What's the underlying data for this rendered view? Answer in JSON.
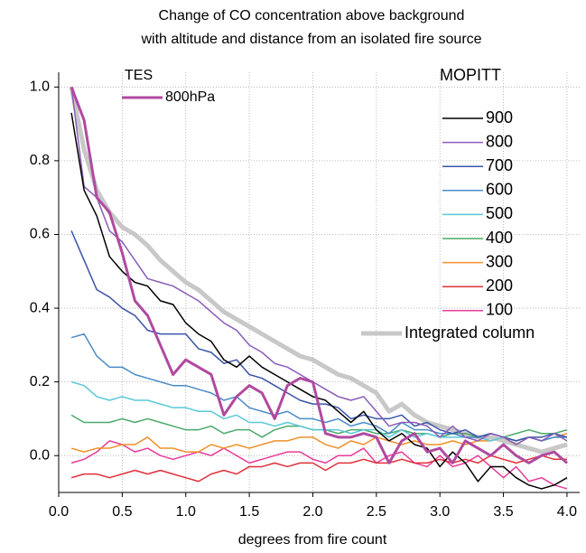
{
  "chart_data": {
    "type": "line",
    "title": [
      "Change of CO concentration above background",
      "with altitude and distance from an isolated fire source"
    ],
    "x_label": "degrees from fire count",
    "legend_titles": [
      "TES",
      "MOPITT"
    ],
    "x": [
      0.1,
      0.2,
      0.3,
      0.4,
      0.5,
      0.6,
      0.7,
      0.8,
      0.9,
      1.0,
      1.1,
      1.2,
      1.3,
      1.4,
      1.5,
      1.6,
      1.7,
      1.8,
      1.9,
      2.0,
      2.1,
      2.2,
      2.3,
      2.4,
      2.5,
      2.6,
      2.7,
      2.8,
      2.9,
      3.0,
      3.1,
      3.2,
      3.3,
      3.4,
      3.5,
      3.6,
      3.7,
      3.8,
      3.9,
      4.0
    ],
    "xlim": [
      0,
      4.1
    ],
    "ylim": [
      -0.1,
      1.04
    ],
    "xticks": [
      {
        "value": 0,
        "label": "0.0"
      },
      {
        "value": 0.5,
        "label": "0.5"
      },
      {
        "value": 1,
        "label": "1.0"
      },
      {
        "value": 1.5,
        "label": "1.5"
      },
      {
        "value": 2,
        "label": "2.0"
      },
      {
        "value": 2.5,
        "label": "2.5"
      },
      {
        "value": 3,
        "label": "3.0"
      },
      {
        "value": 3.5,
        "label": "3.5"
      },
      {
        "value": 4,
        "label": "4.0"
      }
    ],
    "yticks": [
      {
        "value": 0,
        "label": "0.0"
      },
      {
        "value": 0.2,
        "label": "0.2"
      },
      {
        "value": 0.4,
        "label": "0.4"
      },
      {
        "value": 0.6,
        "label": "0.6"
      },
      {
        "value": 0.8,
        "label": "0.8"
      },
      {
        "value": 1,
        "label": "1.0"
      }
    ],
    "grid": true,
    "series": [
      {
        "name": "800hPa",
        "color": "#b04aa0",
        "values": [
          1.0,
          0.91,
          0.7,
          0.66,
          0.55,
          0.42,
          0.38,
          0.3,
          0.22,
          0.26,
          0.24,
          0.22,
          0.11,
          0.16,
          0.19,
          0.17,
          0.1,
          0.19,
          0.21,
          0.2,
          0.06,
          0.05,
          0.05,
          0.06,
          0.05,
          -0.02,
          0.04,
          0.06,
          0.01,
          0.02,
          -0.02,
          0.04,
          0.02,
          0.0,
          0.03,
          0.0,
          -0.02,
          0.0,
          0.01,
          -0.02
        ]
      },
      {
        "name": "900",
        "color": "#000000",
        "values": [
          0.93,
          0.72,
          0.65,
          0.54,
          0.5,
          0.47,
          0.46,
          0.42,
          0.41,
          0.36,
          0.33,
          0.31,
          0.26,
          0.24,
          0.27,
          0.24,
          0.22,
          0.2,
          0.18,
          0.16,
          0.15,
          0.12,
          0.09,
          0.12,
          0.07,
          0.04,
          0.06,
          0.03,
          0.02,
          -0.03,
          0.01,
          -0.02,
          -0.07,
          -0.03,
          -0.03,
          -0.06,
          -0.08,
          -0.09,
          -0.08,
          -0.06
        ]
      },
      {
        "name": "800",
        "color": "#8a5cb8",
        "values": [
          1.0,
          0.73,
          0.7,
          0.61,
          0.58,
          0.53,
          0.48,
          0.47,
          0.46,
          0.44,
          0.42,
          0.39,
          0.36,
          0.34,
          0.3,
          0.28,
          0.25,
          0.24,
          0.22,
          0.2,
          0.18,
          0.16,
          0.15,
          0.16,
          0.12,
          0.08,
          0.09,
          0.09,
          0.08,
          0.05,
          0.08,
          0.05,
          0.04,
          0.06,
          0.05,
          0.03,
          0.05,
          0.04,
          0.06,
          0.04
        ]
      },
      {
        "name": "700",
        "color": "#3a55a8",
        "values": [
          0.61,
          0.53,
          0.45,
          0.43,
          0.4,
          0.38,
          0.34,
          0.33,
          0.33,
          0.33,
          0.29,
          0.28,
          0.25,
          0.26,
          0.22,
          0.21,
          0.19,
          0.17,
          0.15,
          0.14,
          0.14,
          0.13,
          0.1,
          0.11,
          0.1,
          0.1,
          0.11,
          0.08,
          0.09,
          0.07,
          0.06,
          0.07,
          0.05,
          0.06,
          0.05,
          0.04,
          0.05,
          0.05,
          0.06,
          0.05
        ]
      },
      {
        "name": "600",
        "color": "#4a8cc8",
        "values": [
          0.32,
          0.33,
          0.27,
          0.24,
          0.24,
          0.22,
          0.21,
          0.2,
          0.19,
          0.19,
          0.18,
          0.17,
          0.15,
          0.16,
          0.13,
          0.12,
          0.11,
          0.12,
          0.1,
          0.1,
          0.09,
          0.1,
          0.08,
          0.09,
          0.08,
          0.06,
          0.09,
          0.07,
          0.07,
          0.06,
          0.06,
          0.05,
          0.05,
          0.06,
          0.05,
          0.04,
          0.05,
          0.04,
          0.05,
          0.05
        ]
      },
      {
        "name": "500",
        "color": "#5ac8d8",
        "values": [
          0.2,
          0.19,
          0.16,
          0.15,
          0.16,
          0.15,
          0.15,
          0.14,
          0.13,
          0.13,
          0.12,
          0.12,
          0.1,
          0.11,
          0.09,
          0.09,
          0.08,
          0.09,
          0.08,
          0.07,
          0.07,
          0.07,
          0.06,
          0.07,
          0.07,
          0.05,
          0.07,
          0.05,
          0.06,
          0.05,
          0.05,
          0.05,
          0.05,
          0.04,
          0.05,
          0.04,
          0.05,
          0.04,
          0.05,
          0.05
        ]
      },
      {
        "name": "400",
        "color": "#4aaa6a",
        "values": [
          0.11,
          0.09,
          0.09,
          0.09,
          0.1,
          0.09,
          0.1,
          0.09,
          0.08,
          0.07,
          0.07,
          0.08,
          0.06,
          0.07,
          0.07,
          0.05,
          0.07,
          0.08,
          0.08,
          0.07,
          0.07,
          0.06,
          0.07,
          0.07,
          0.06,
          0.06,
          0.07,
          0.06,
          0.06,
          0.05,
          0.06,
          0.06,
          0.05,
          0.06,
          0.05,
          0.06,
          0.07,
          0.06,
          0.06,
          0.07
        ]
      },
      {
        "name": "300",
        "color": "#f0902a",
        "values": [
          0.02,
          0.01,
          0.02,
          0.02,
          0.03,
          0.03,
          0.05,
          0.02,
          0.02,
          0.01,
          0.01,
          0.03,
          0.02,
          0.03,
          0.02,
          0.03,
          0.04,
          0.04,
          0.05,
          0.05,
          0.03,
          0.02,
          0.04,
          0.03,
          0.05,
          0.04,
          0.03,
          0.04,
          0.03,
          0.03,
          0.04,
          0.03,
          0.04,
          0.04,
          0.05,
          0.03,
          0.05,
          0.04,
          0.05,
          0.06
        ]
      },
      {
        "name": "200",
        "color": "#e0303a",
        "values": [
          -0.06,
          -0.05,
          -0.05,
          -0.06,
          -0.05,
          -0.04,
          -0.05,
          -0.04,
          -0.05,
          -0.06,
          -0.07,
          -0.05,
          -0.04,
          -0.05,
          -0.03,
          -0.03,
          -0.02,
          -0.03,
          -0.02,
          -0.02,
          -0.04,
          -0.02,
          -0.02,
          -0.01,
          -0.02,
          -0.02,
          -0.01,
          -0.02,
          -0.02,
          -0.01,
          -0.02,
          -0.01,
          -0.02,
          0.0,
          -0.01,
          -0.02,
          -0.01,
          0.0,
          -0.01,
          -0.01
        ]
      },
      {
        "name": "100",
        "color": "#e83c9a",
        "values": [
          -0.02,
          -0.01,
          0.01,
          0.04,
          0.03,
          0.01,
          0.02,
          0.0,
          -0.01,
          0.0,
          0.01,
          0.0,
          0.02,
          0.0,
          -0.02,
          -0.01,
          0.0,
          0.01,
          0.01,
          -0.01,
          -0.02,
          0.0,
          0.0,
          0.02,
          -0.02,
          0.0,
          0.01,
          -0.02,
          -0.03,
          0.0,
          -0.03,
          -0.02,
          0.0,
          -0.03,
          -0.06,
          -0.03,
          -0.07,
          -0.06,
          -0.08,
          -0.09
        ]
      },
      {
        "name": "Integrated column",
        "color": "#c8c8c8",
        "values": [
          1.0,
          0.83,
          0.72,
          0.66,
          0.62,
          0.6,
          0.57,
          0.53,
          0.5,
          0.47,
          0.45,
          0.42,
          0.39,
          0.37,
          0.35,
          0.33,
          0.31,
          0.29,
          0.27,
          0.26,
          0.24,
          0.22,
          0.21,
          0.19,
          0.17,
          0.12,
          0.14,
          0.11,
          0.09,
          0.08,
          0.07,
          0.06,
          0.05,
          0.05,
          0.04,
          0.03,
          0.02,
          0.01,
          0.02,
          0.03
        ]
      }
    ]
  }
}
